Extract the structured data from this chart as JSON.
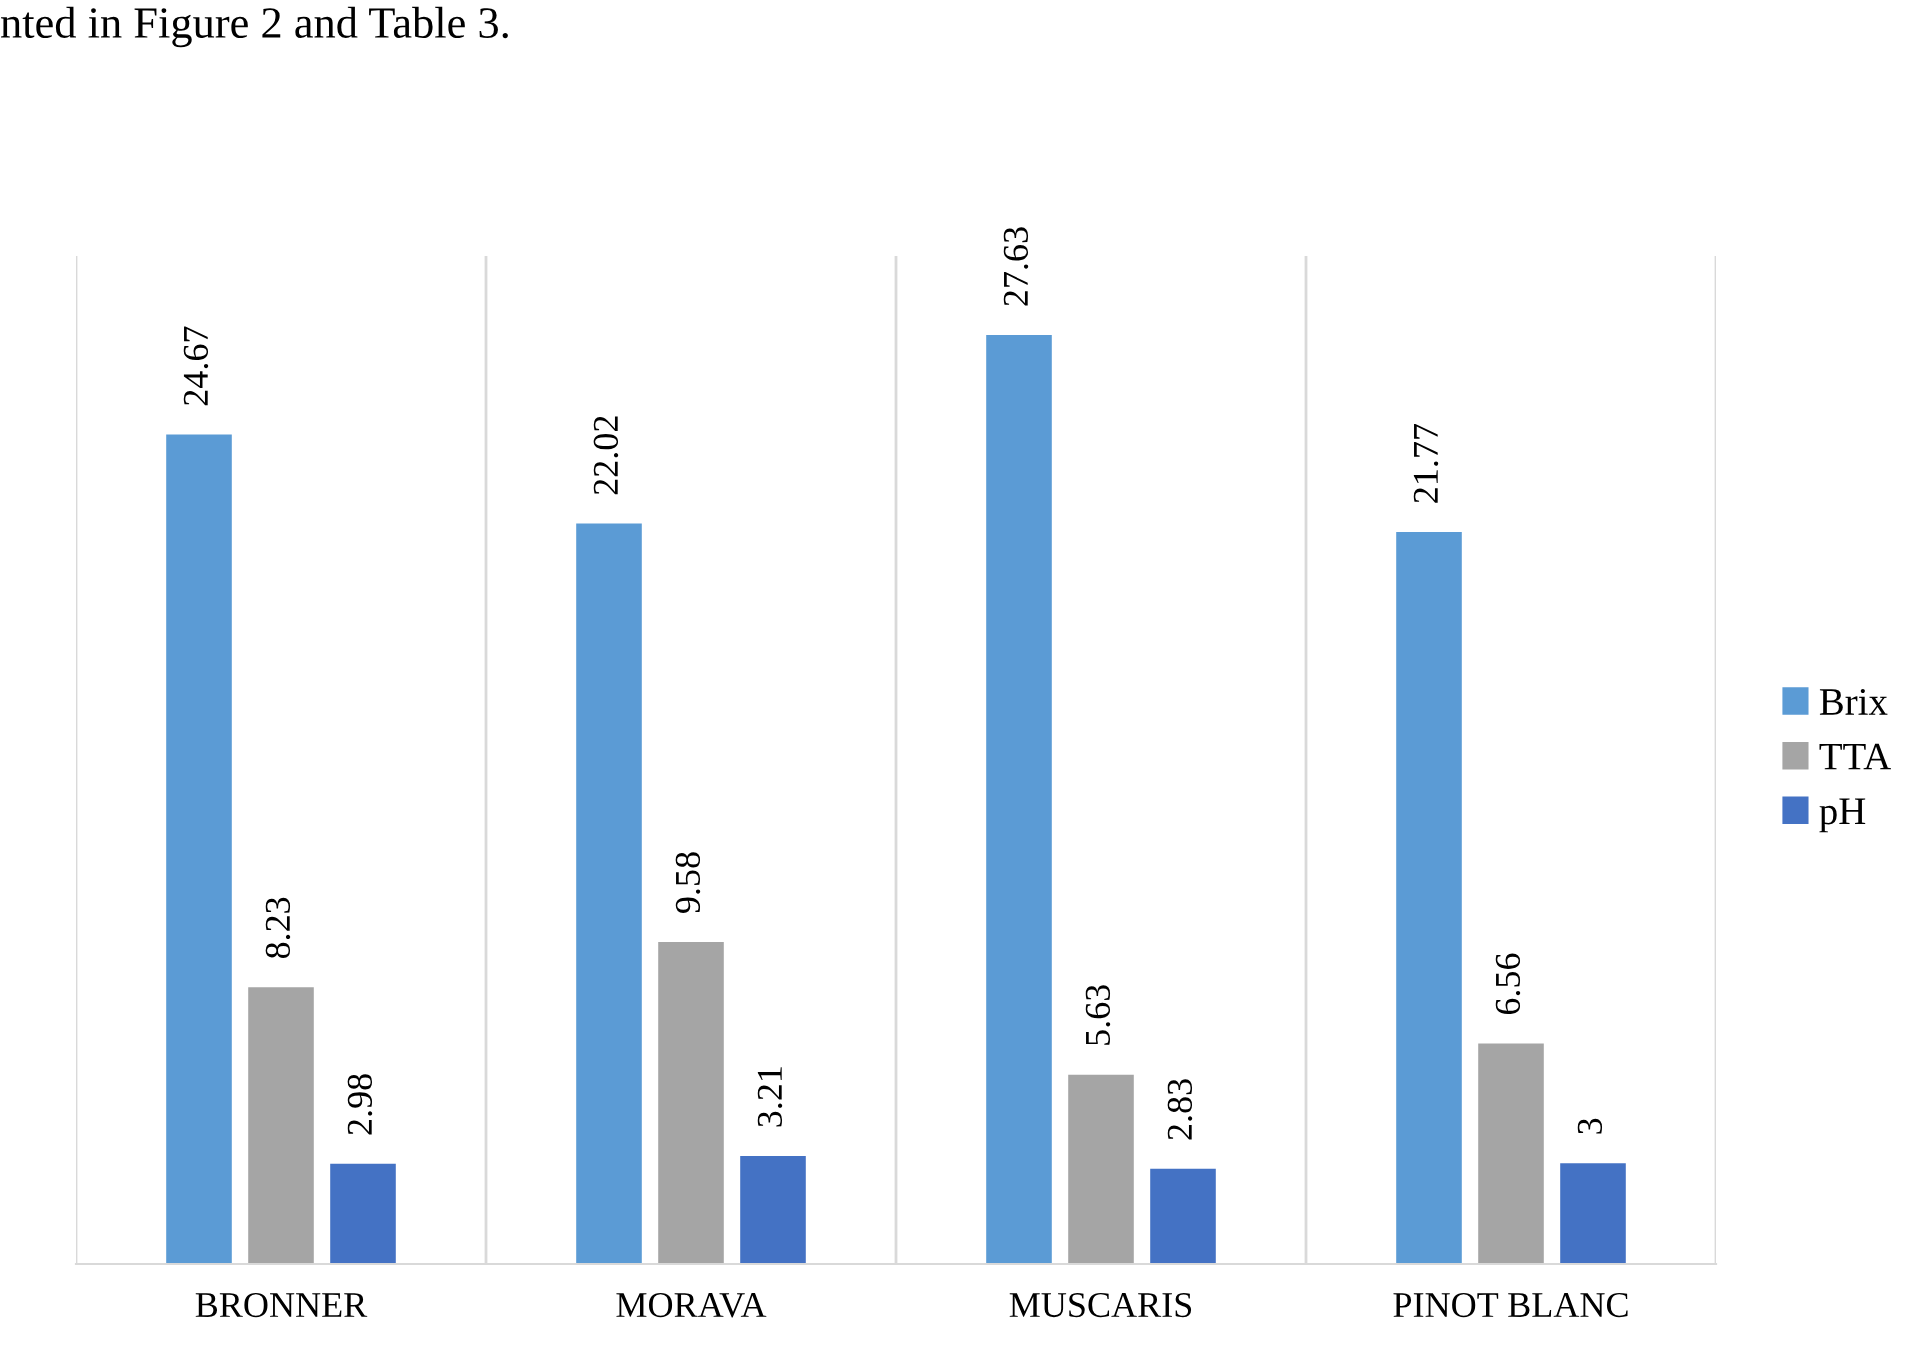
{
  "chart_data": {
    "type": "bar",
    "categories": [
      "BRONNER",
      "MORAVA",
      "MUSCARIS",
      "PINOT BLANC"
    ],
    "series": [
      {
        "name": "Brix",
        "color": "#5b9bd5",
        "values": [
          24.67,
          22.02,
          27.63,
          21.77
        ]
      },
      {
        "name": "TTA",
        "color": "#a5a5a5",
        "values": [
          8.23,
          9.58,
          5.63,
          6.56
        ]
      },
      {
        "name": "pH",
        "color": "#4472c4",
        "values": [
          2.98,
          3.21,
          2.83,
          3
        ]
      }
    ],
    "data_labels": true,
    "grid": "x",
    "legend": "right",
    "annotations": [
      "nted in Figure 2 and Table 3."
    ]
  }
}
